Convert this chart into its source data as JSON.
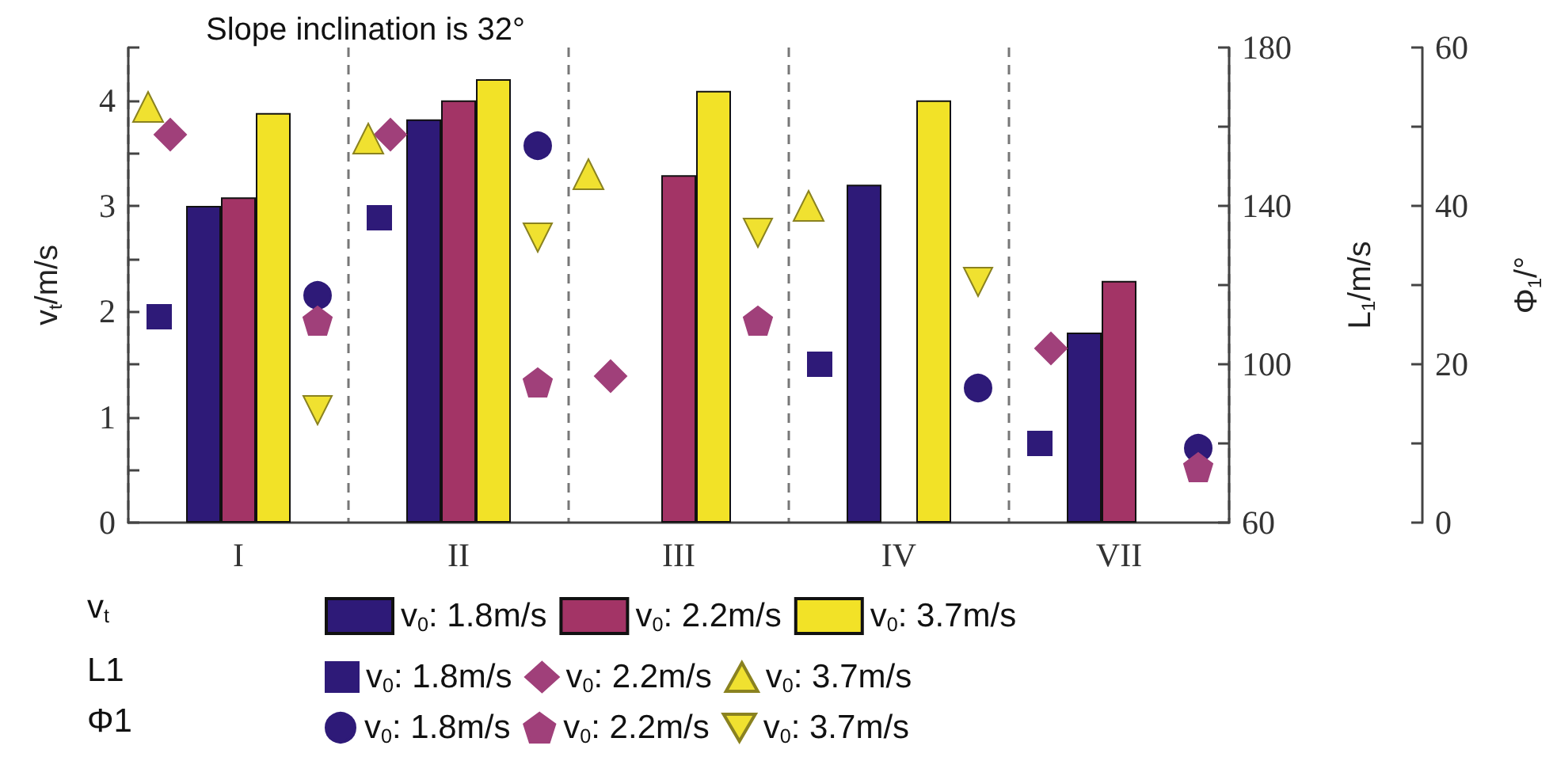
{
  "chart_data": {
    "type": "bar",
    "title": "Slope inclination is 32°",
    "categories": [
      "I",
      "II",
      "III",
      "IV",
      "VII"
    ],
    "ylabel": "v$_{t}$/m/s",
    "y2label": "L$_{1}$/m/s",
    "y3label": "Φ$_{1}$/°",
    "ylim": [
      0,
      4.5
    ],
    "yticks": [
      0,
      {
        "value": 0.5,
        "label": null
      },
      1,
      {
        "value": 1.5,
        "label": null
      },
      2,
      {
        "value": 2.5,
        "label": null
      },
      3,
      {
        "value": 3.5,
        "label": null
      },
      4,
      {
        "value": 4.5,
        "label": null
      }
    ],
    "y2lim": [
      60,
      180
    ],
    "y2ticks": [
      60,
      {
        "value": 80,
        "label": null
      },
      100,
      {
        "value": 120,
        "label": null
      },
      140,
      {
        "value": 160,
        "label": null
      },
      180
    ],
    "y3lim": [
      0,
      60
    ],
    "y3ticks": [
      0,
      {
        "value": 10,
        "label": null
      },
      20,
      {
        "value": 30,
        "label": null
      },
      40,
      {
        "value": 50,
        "label": null
      },
      60
    ],
    "grid": "x",
    "legend": "bottom",
    "annotations": [
      "v$_{t}$",
      "L1",
      "Φ1"
    ],
    "series": [
      {
        "axis": "y",
        "name": "v$_{0}$: 1.8m/s",
        "color": "#2e1a78",
        "values": [
          3.0,
          3.82,
          null,
          3.2,
          1.8
        ]
      },
      {
        "axis": "y",
        "name": "v$_{0}$: 2.2m/s",
        "color": "#a33466",
        "values": [
          3.08,
          4.0,
          3.29,
          null,
          2.29
        ]
      },
      {
        "axis": "y",
        "name": "v$_{0}$: 3.7m/s",
        "color": "#f2e227",
        "values": [
          3.88,
          4.2,
          4.09,
          4.0,
          null
        ]
      },
      {
        "type": "scatter",
        "axis": "y2",
        "marker": "square",
        "name": "v$_{0}$: 1.8m/s",
        "color": "#2e1a78",
        "x": [
          "I",
          "II",
          "III",
          "IV",
          "VII"
        ],
        "values": [
          112,
          137,
          null,
          100,
          80
        ]
      },
      {
        "type": "scatter",
        "axis": "y2",
        "marker": "diamond",
        "name": "v$_{0}$: 2.2m/s",
        "color": "#a0407a",
        "x": [
          "I",
          "II",
          "III",
          "IV",
          "VII"
        ],
        "values": [
          158,
          158,
          97,
          null,
          104
        ]
      },
      {
        "type": "scatter",
        "axis": "y2",
        "marker": "triangle",
        "name": "v$_{0}$: 3.7m/s",
        "color": "#f0e130",
        "x": [
          "I",
          "II",
          "III",
          "IV",
          "VII"
        ],
        "values": [
          165,
          157,
          148,
          140,
          null
        ]
      },
      {
        "type": "scatter",
        "axis": "y3",
        "marker": "circle",
        "name": "v$_{0}$: 1.8m/s",
        "color": "#2e1a78",
        "x": [
          "I",
          "II",
          "III",
          "IV",
          "VII"
        ],
        "values": [
          28.7,
          47.6,
          null,
          17,
          9.4
        ]
      },
      {
        "type": "scatter",
        "axis": "y3",
        "name": "v$_{0}$: 2.2m/s",
        "color": "#a0407a",
        "x": [
          "I",
          "II",
          "III",
          "IV",
          "VII"
        ],
        "values": [
          25.5,
          17.7,
          25.5,
          null,
          7
        ]
      },
      {
        "type": "scatter",
        "axis": "y3",
        "name": "v$_{0}$: 3.7m/s",
        "color": "#f0e130",
        "x": [
          "I",
          "II",
          "III",
          "IV",
          "VII"
        ],
        "values": [
          14.2,
          36,
          36.6,
          30.4,
          null
        ]
      }
    ]
  }
}
